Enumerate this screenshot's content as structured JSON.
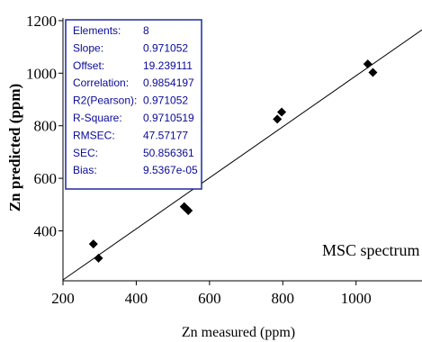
{
  "chart_data": {
    "type": "scatter",
    "xlabel": "Zn measured (ppm)",
    "ylabel": "Zn predicted (ppm)",
    "xlim": [
      200,
      1180
    ],
    "ylim": [
      210,
      1210
    ],
    "x_ticks": [
      200,
      400,
      600,
      800,
      1000
    ],
    "y_ticks": [
      400,
      600,
      800,
      1000,
      1200
    ],
    "grid": false,
    "points": [
      {
        "x": 283,
        "y": 350
      },
      {
        "x": 297,
        "y": 296
      },
      {
        "x": 531,
        "y": 492
      },
      {
        "x": 542,
        "y": 477
      },
      {
        "x": 785,
        "y": 825
      },
      {
        "x": 797,
        "y": 852
      },
      {
        "x": 1032,
        "y": 1035
      },
      {
        "x": 1046,
        "y": 1003
      }
    ],
    "fit_line": {
      "slope": 0.971052,
      "offset": 19.239111
    },
    "annotation": "MSC spectrum",
    "stats": [
      {
        "label": "Elements:",
        "value": "8"
      },
      {
        "label": "Slope:",
        "value": "0.971052"
      },
      {
        "label": "Offset:",
        "value": "19.239111"
      },
      {
        "label": "Correlation:",
        "value": "0.9854197"
      },
      {
        "label": "R2(Pearson):",
        "value": "0.971052"
      },
      {
        "label": "R-Square:",
        "value": "0.9710519"
      },
      {
        "label": "RMSEC:",
        "value": "47.57177"
      },
      {
        "label": "SEC:",
        "value": "50.856361"
      },
      {
        "label": "Bias:",
        "value": "9.5367e-05"
      }
    ],
    "colors": {
      "stats_text": "#0a0a96",
      "stats_border": "#1c2a9c",
      "points": "#000000",
      "line": "#000000"
    }
  }
}
